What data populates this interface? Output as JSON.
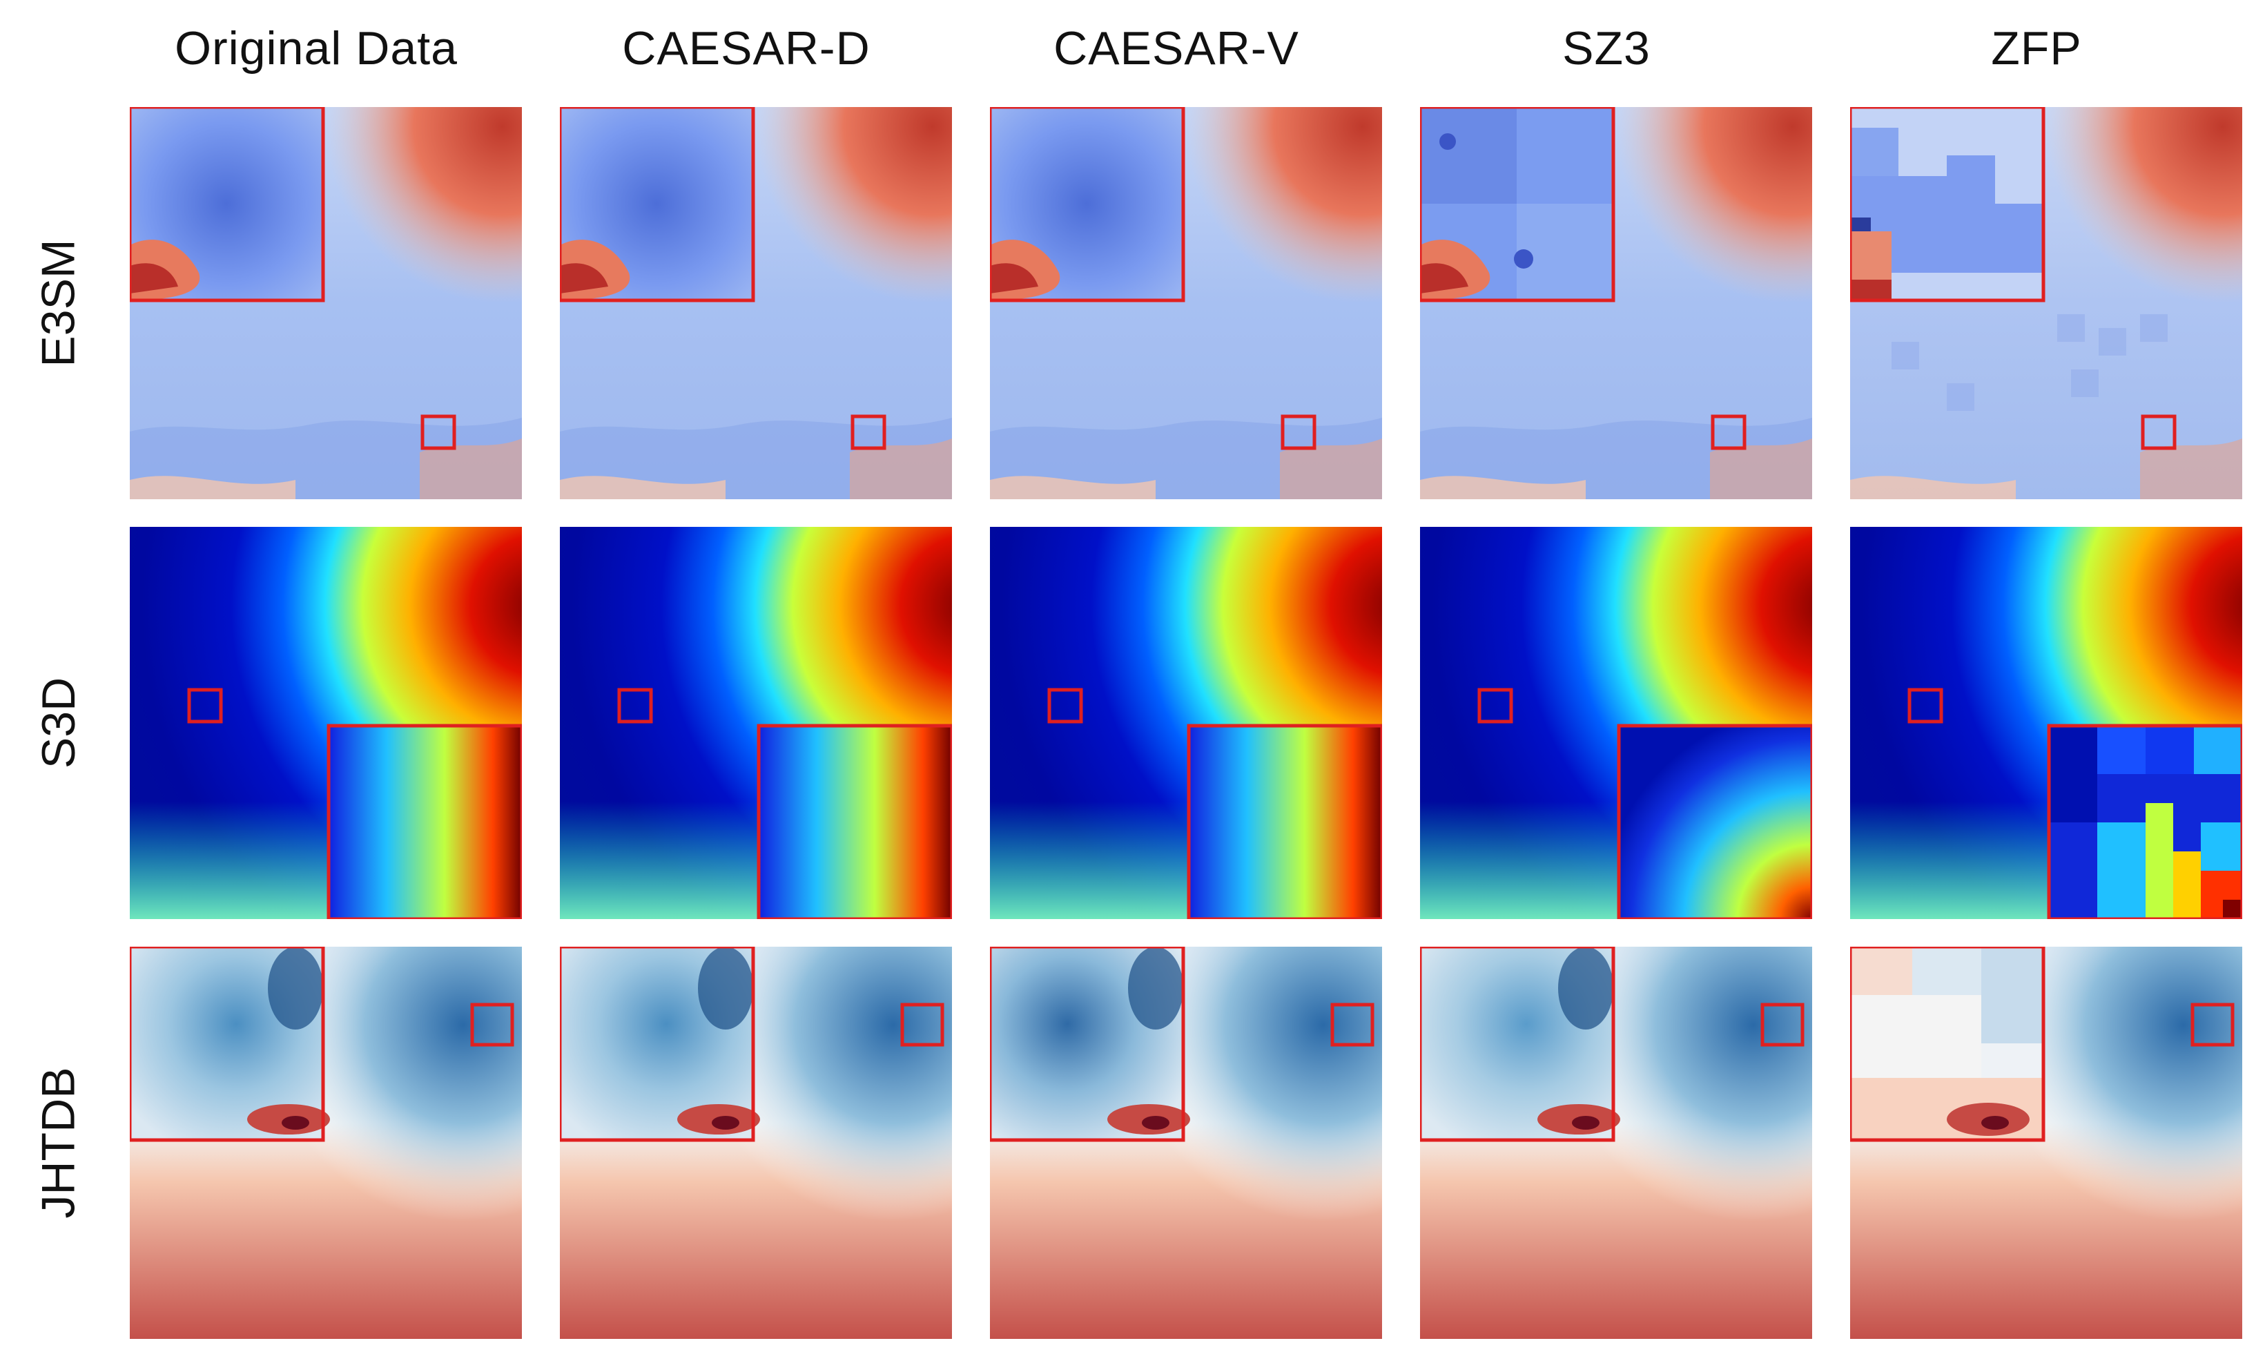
{
  "columns": [
    "Original Data",
    "CAESAR-D",
    "CAESAR-V",
    "SZ3",
    "ZFP"
  ],
  "rows": [
    "E3SM",
    "S3D",
    "JHTDB"
  ],
  "highlight_color": "#e02020",
  "colormaps": {
    "E3SM": "coolwarm",
    "S3D": "jet",
    "JHTDB": "RdBu"
  }
}
